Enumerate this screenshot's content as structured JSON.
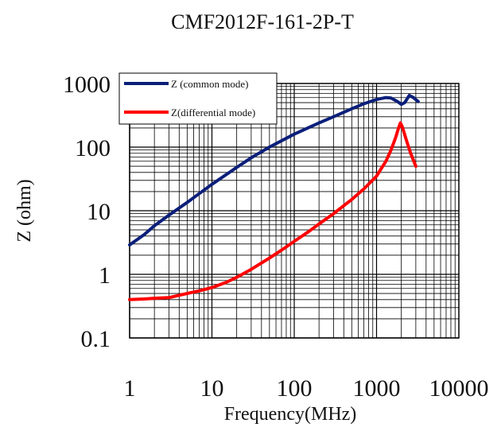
{
  "chart_data": {
    "type": "line",
    "title": "CMF2012F-161-2P-T",
    "xlabel": "Frequency(MHz)",
    "ylabel": "Z (ohm)",
    "x_scale": "log",
    "y_scale": "log",
    "xlim": [
      1,
      10000
    ],
    "ylim": [
      0.1,
      1000
    ],
    "x_ticks": [
      "1",
      "10",
      "100",
      "1000",
      "10000"
    ],
    "y_ticks": [
      "0.1",
      "1",
      "10",
      "100",
      "1000"
    ],
    "grid": true,
    "legend_position": "top-left",
    "series": [
      {
        "name": "Z (common mode)",
        "color": "#0b1f7a",
        "points": [
          [
            1,
            2.9
          ],
          [
            1.5,
            4.2
          ],
          [
            2,
            5.8
          ],
          [
            3,
            8.5
          ],
          [
            5,
            13.5
          ],
          [
            10,
            26
          ],
          [
            20,
            48
          ],
          [
            30,
            68
          ],
          [
            50,
            100
          ],
          [
            100,
            160
          ],
          [
            200,
            240
          ],
          [
            300,
            300
          ],
          [
            500,
            400
          ],
          [
            700,
            480
          ],
          [
            1000,
            560
          ],
          [
            1300,
            600
          ],
          [
            1500,
            590
          ],
          [
            1800,
            520
          ],
          [
            2000,
            470
          ],
          [
            2200,
            500
          ],
          [
            2500,
            650
          ],
          [
            2800,
            600
          ],
          [
            3200,
            520
          ]
        ]
      },
      {
        "name": "Z(differential mode)",
        "color": "#ff0000",
        "points": [
          [
            1,
            0.4
          ],
          [
            1.5,
            0.41
          ],
          [
            2,
            0.42
          ],
          [
            3,
            0.43
          ],
          [
            5,
            0.5
          ],
          [
            7,
            0.55
          ],
          [
            10,
            0.62
          ],
          [
            15,
            0.75
          ],
          [
            20,
            0.9
          ],
          [
            30,
            1.2
          ],
          [
            50,
            1.8
          ],
          [
            70,
            2.4
          ],
          [
            100,
            3.3
          ],
          [
            150,
            4.7
          ],
          [
            200,
            6.2
          ],
          [
            300,
            9
          ],
          [
            500,
            15
          ],
          [
            700,
            22
          ],
          [
            1000,
            35
          ],
          [
            1300,
            60
          ],
          [
            1500,
            90
          ],
          [
            1700,
            140
          ],
          [
            1850,
            200
          ],
          [
            1950,
            240
          ],
          [
            2050,
            210
          ],
          [
            2300,
            130
          ],
          [
            2600,
            80
          ],
          [
            3000,
            50
          ]
        ]
      }
    ]
  }
}
